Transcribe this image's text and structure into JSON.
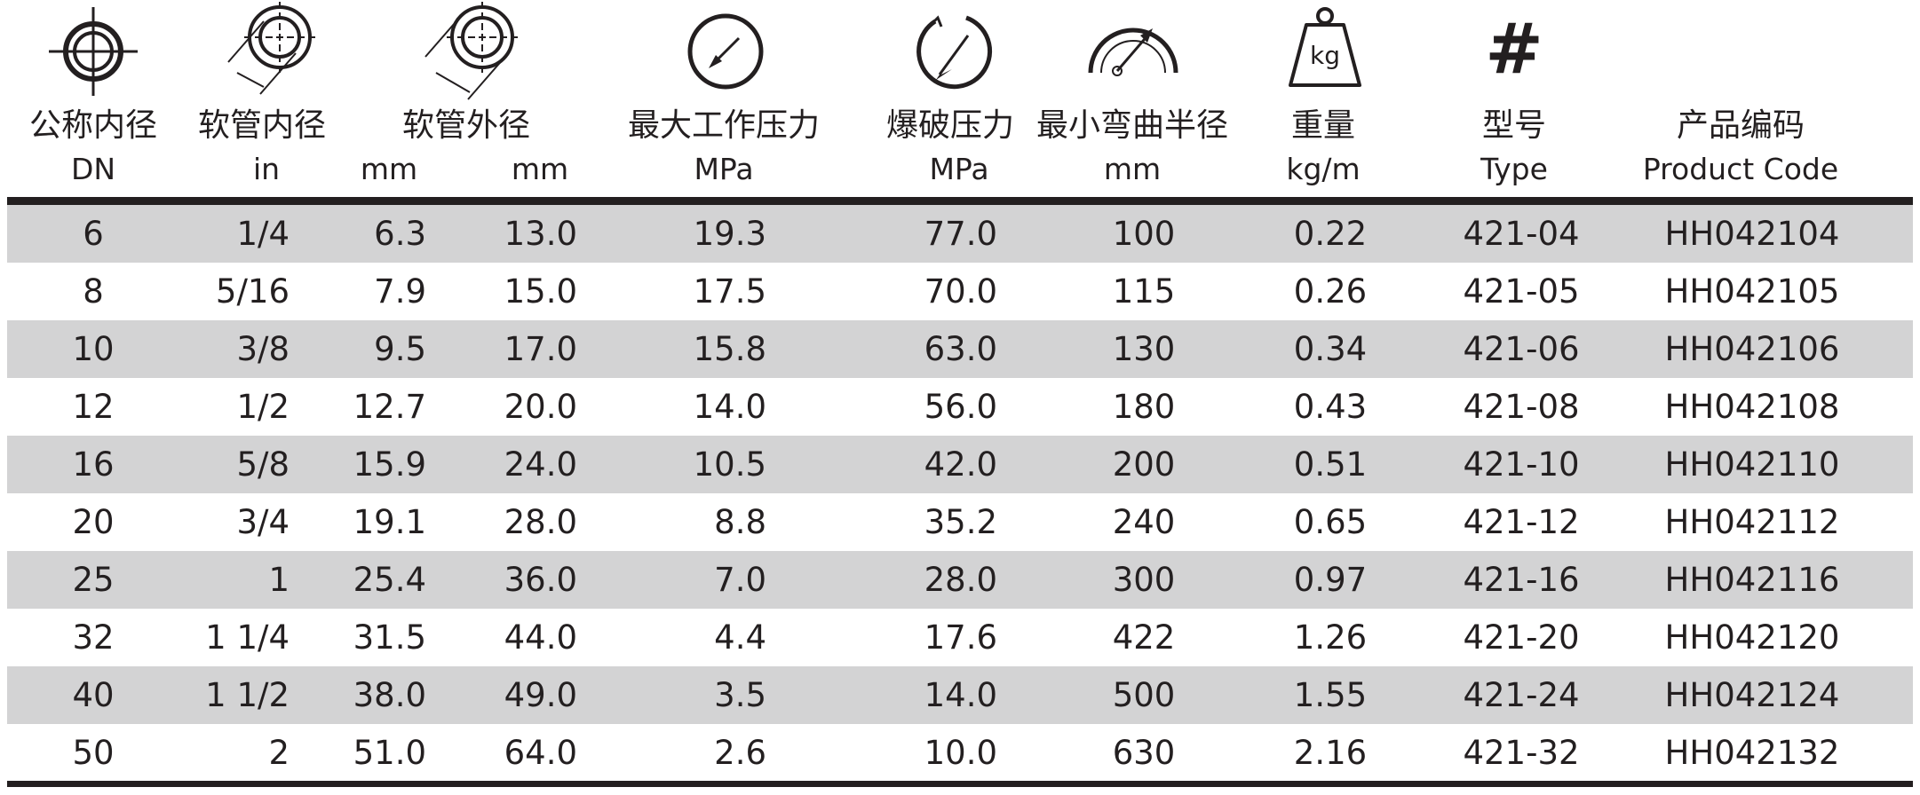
{
  "headers": {
    "dn": {
      "cn": "公称内径",
      "en": "DN"
    },
    "hose_id": {
      "cn": "软管内径",
      "en_in": "in",
      "en_mm": "mm"
    },
    "hose_od": {
      "cn": "软管外径",
      "en": "mm"
    },
    "max_wp": {
      "cn": "最大工作压力",
      "en": "MPa"
    },
    "burst": {
      "cn": "爆破压力",
      "en": "MPa"
    },
    "bend": {
      "cn": "最小弯曲半径",
      "en": "mm"
    },
    "weight": {
      "cn": "重量",
      "en": "kg/m"
    },
    "type": {
      "cn": "型号",
      "en": "Type"
    },
    "code": {
      "cn": "产品编码",
      "en": "Product Code"
    }
  },
  "icons": {
    "weight_label": "kg",
    "hash": "#"
  },
  "rows": [
    {
      "dn": "6",
      "in": "1/4",
      "id_mm": "6.3",
      "od_mm": "13.0",
      "wp": "19.3",
      "burst": "77.0",
      "bend": "100",
      "weight": "0.22",
      "type": "421-04",
      "code": "HH042104"
    },
    {
      "dn": "8",
      "in": "5/16",
      "id_mm": "7.9",
      "od_mm": "15.0",
      "wp": "17.5",
      "burst": "70.0",
      "bend": "115",
      "weight": "0.26",
      "type": "421-05",
      "code": "HH042105"
    },
    {
      "dn": "10",
      "in": "3/8",
      "id_mm": "9.5",
      "od_mm": "17.0",
      "wp": "15.8",
      "burst": "63.0",
      "bend": "130",
      "weight": "0.34",
      "type": "421-06",
      "code": "HH042106"
    },
    {
      "dn": "12",
      "in": "1/2",
      "id_mm": "12.7",
      "od_mm": "20.0",
      "wp": "14.0",
      "burst": "56.0",
      "bend": "180",
      "weight": "0.43",
      "type": "421-08",
      "code": "HH042108"
    },
    {
      "dn": "16",
      "in": "5/8",
      "id_mm": "15.9",
      "od_mm": "24.0",
      "wp": "10.5",
      "burst": "42.0",
      "bend": "200",
      "weight": "0.51",
      "type": "421-10",
      "code": "HH042110"
    },
    {
      "dn": "20",
      "in": "3/4",
      "id_mm": "19.1",
      "od_mm": "28.0",
      "wp": "8.8",
      "burst": "35.2",
      "bend": "240",
      "weight": "0.65",
      "type": "421-12",
      "code": "HH042112"
    },
    {
      "dn": "25",
      "in": "1",
      "id_mm": "25.4",
      "od_mm": "36.0",
      "wp": "7.0",
      "burst": "28.0",
      "bend": "300",
      "weight": "0.97",
      "type": "421-16",
      "code": "HH042116"
    },
    {
      "dn": "32",
      "in": "1 1/4",
      "id_mm": "31.5",
      "od_mm": "44.0",
      "wp": "4.4",
      "burst": "17.6",
      "bend": "422",
      "weight": "1.26",
      "type": "421-20",
      "code": "HH042120"
    },
    {
      "dn": "40",
      "in": "1 1/2",
      "id_mm": "38.0",
      "od_mm": "49.0",
      "wp": "3.5",
      "burst": "14.0",
      "bend": "500",
      "weight": "1.55",
      "type": "421-24",
      "code": "HH042124"
    },
    {
      "dn": "50",
      "in": "2",
      "id_mm": "51.0",
      "od_mm": "64.0",
      "wp": "2.6",
      "burst": "10.0",
      "bend": "630",
      "weight": "2.16",
      "type": "421-32",
      "code": "HH042132"
    }
  ]
}
